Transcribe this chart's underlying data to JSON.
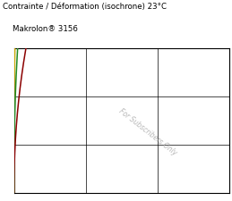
{
  "title1": "Contrainte / Déformation (isochrone) 23°C",
  "title2": "Makrolon® 3156",
  "watermark": "For Subscribers Only",
  "bg_color": "#ffffff",
  "curves": [
    {
      "color": "#cc0000",
      "k": 12.0,
      "n": 0.3
    },
    {
      "color": "#1a6faf",
      "k": 9.5,
      "n": 0.33
    },
    {
      "color": "#ccaa00",
      "k": 7.5,
      "n": 0.37
    },
    {
      "color": "#228b22",
      "k": 5.5,
      "n": 0.42
    },
    {
      "color": "#8b0000",
      "k": 4.0,
      "n": 0.48
    }
  ],
  "xlim": [
    0,
    1
  ],
  "ylim": [
    0,
    1
  ],
  "xticks": [
    0.333,
    0.667,
    1.0
  ],
  "yticks": [
    0.333,
    0.667,
    1.0
  ]
}
